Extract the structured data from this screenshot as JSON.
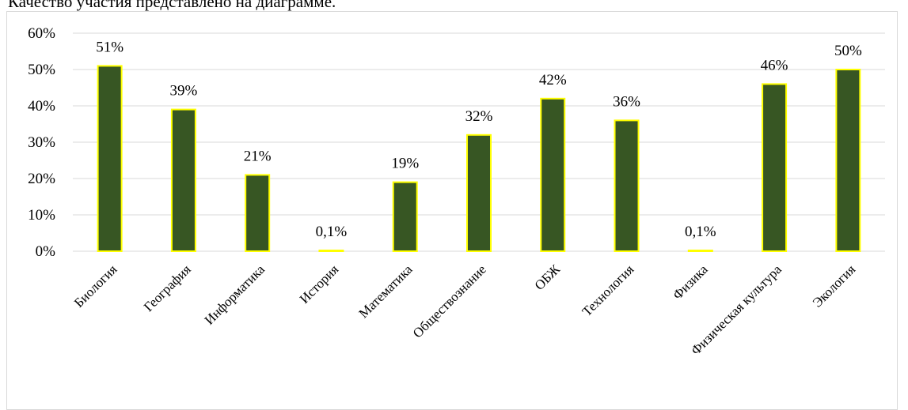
{
  "header": {
    "caption": "Качество участия представлено на диаграмме."
  },
  "chart_data": {
    "type": "bar",
    "categories": [
      "Биология",
      "География",
      "Информатика",
      "История",
      "Математика",
      "Обществознание",
      "ОБЖ",
      "Технология",
      "Физика",
      "Физическая культура",
      "Экология"
    ],
    "values": [
      51,
      39,
      21,
      0.1,
      19,
      32,
      42,
      36,
      0.1,
      46,
      50
    ],
    "data_labels": [
      "51%",
      "39%",
      "21%",
      "0,1%",
      "19%",
      "32%",
      "42%",
      "36%",
      "0,1%",
      "46%",
      "50%"
    ],
    "y_ticks": [
      "0%",
      "10%",
      "20%",
      "30%",
      "40%",
      "50%",
      "60%"
    ],
    "ylim": [
      0,
      60
    ],
    "grid": true,
    "colors": {
      "bar_fill": "#375623",
      "bar_border": "#ffff00",
      "grid": "#d9d9d9"
    }
  }
}
